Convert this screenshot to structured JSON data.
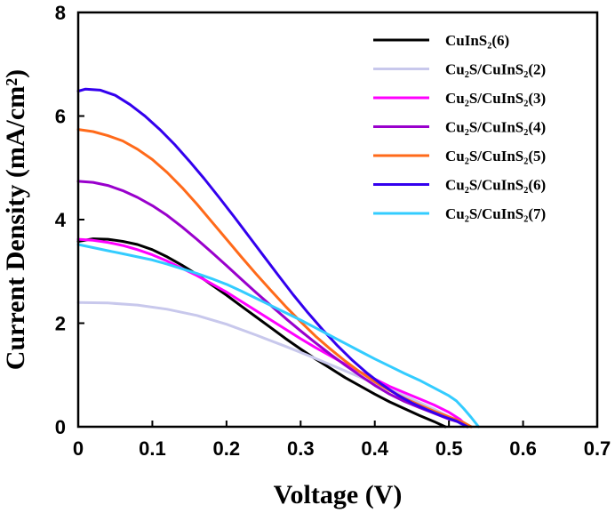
{
  "chart_data": {
    "type": "line",
    "title": "",
    "xlabel": "Voltage (V)",
    "ylabel": "Current Density (mA/cm²)",
    "xlim": [
      0,
      0.7
    ],
    "ylim": [
      0,
      8
    ],
    "xticks": [
      "0",
      "0.1",
      "0.2",
      "0.3",
      "0.4",
      "0.5",
      "0.6",
      "0.7"
    ],
    "yticks": [
      "0",
      "2",
      "4",
      "6",
      "8"
    ],
    "grid": false,
    "legend_position": "top-right",
    "series": [
      {
        "name": "CuInS₂(6)",
        "color": "#000000",
        "points": [
          [
            0,
            3.58
          ],
          [
            0.02,
            3.63
          ],
          [
            0.04,
            3.62
          ],
          [
            0.06,
            3.58
          ],
          [
            0.08,
            3.52
          ],
          [
            0.1,
            3.42
          ],
          [
            0.12,
            3.28
          ],
          [
            0.14,
            3.12
          ],
          [
            0.16,
            2.94
          ],
          [
            0.18,
            2.74
          ],
          [
            0.2,
            2.54
          ],
          [
            0.22,
            2.33
          ],
          [
            0.24,
            2.12
          ],
          [
            0.26,
            1.91
          ],
          [
            0.28,
            1.7
          ],
          [
            0.3,
            1.5
          ],
          [
            0.32,
            1.31
          ],
          [
            0.34,
            1.13
          ],
          [
            0.36,
            0.95
          ],
          [
            0.38,
            0.79
          ],
          [
            0.4,
            0.63
          ],
          [
            0.42,
            0.48
          ],
          [
            0.44,
            0.35
          ],
          [
            0.46,
            0.22
          ],
          [
            0.48,
            0.1
          ],
          [
            0.495,
            0.0
          ]
        ]
      },
      {
        "name": "Cu₂S/CuInS₂(2)",
        "color": "#c8c8ec",
        "points": [
          [
            0,
            2.4
          ],
          [
            0.04,
            2.39
          ],
          [
            0.08,
            2.35
          ],
          [
            0.12,
            2.27
          ],
          [
            0.16,
            2.15
          ],
          [
            0.2,
            1.98
          ],
          [
            0.24,
            1.77
          ],
          [
            0.28,
            1.55
          ],
          [
            0.32,
            1.32
          ],
          [
            0.36,
            1.08
          ],
          [
            0.4,
            0.84
          ],
          [
            0.44,
            0.6
          ],
          [
            0.48,
            0.34
          ],
          [
            0.51,
            0.12
          ],
          [
            0.52,
            0.0
          ]
        ]
      },
      {
        "name": "Cu₂S/CuInS₂(3)",
        "color": "#ff00ff",
        "points": [
          [
            0,
            3.62
          ],
          [
            0.02,
            3.6
          ],
          [
            0.04,
            3.56
          ],
          [
            0.06,
            3.5
          ],
          [
            0.08,
            3.42
          ],
          [
            0.1,
            3.32
          ],
          [
            0.12,
            3.2
          ],
          [
            0.14,
            3.06
          ],
          [
            0.16,
            2.92
          ],
          [
            0.18,
            2.76
          ],
          [
            0.2,
            2.6
          ],
          [
            0.22,
            2.42
          ],
          [
            0.24,
            2.24
          ],
          [
            0.26,
            2.06
          ],
          [
            0.28,
            1.88
          ],
          [
            0.3,
            1.7
          ],
          [
            0.32,
            1.53
          ],
          [
            0.34,
            1.37
          ],
          [
            0.36,
            1.21
          ],
          [
            0.38,
            1.06
          ],
          [
            0.4,
            0.92
          ],
          [
            0.42,
            0.78
          ],
          [
            0.44,
            0.66
          ],
          [
            0.46,
            0.54
          ],
          [
            0.48,
            0.42
          ],
          [
            0.5,
            0.28
          ],
          [
            0.515,
            0.14
          ],
          [
            0.525,
            0.0
          ]
        ]
      },
      {
        "name": "Cu₂S/CuInS₂(4)",
        "color": "#9900cc",
        "points": [
          [
            0,
            4.74
          ],
          [
            0.02,
            4.72
          ],
          [
            0.04,
            4.66
          ],
          [
            0.06,
            4.56
          ],
          [
            0.08,
            4.43
          ],
          [
            0.1,
            4.27
          ],
          [
            0.12,
            4.08
          ],
          [
            0.14,
            3.86
          ],
          [
            0.16,
            3.62
          ],
          [
            0.18,
            3.37
          ],
          [
            0.2,
            3.11
          ],
          [
            0.22,
            2.85
          ],
          [
            0.24,
            2.59
          ],
          [
            0.26,
            2.34
          ],
          [
            0.28,
            2.09
          ],
          [
            0.3,
            1.85
          ],
          [
            0.32,
            1.62
          ],
          [
            0.34,
            1.4
          ],
          [
            0.36,
            1.19
          ],
          [
            0.38,
            0.99
          ],
          [
            0.4,
            0.8
          ],
          [
            0.42,
            0.63
          ],
          [
            0.44,
            0.49
          ],
          [
            0.46,
            0.37
          ],
          [
            0.48,
            0.26
          ],
          [
            0.5,
            0.15
          ],
          [
            0.52,
            0.06
          ],
          [
            0.53,
            0.0
          ]
        ]
      },
      {
        "name": "Cu₂S/CuInS₂(5)",
        "color": "#ff6a1a",
        "points": [
          [
            0,
            5.74
          ],
          [
            0.02,
            5.7
          ],
          [
            0.04,
            5.62
          ],
          [
            0.06,
            5.52
          ],
          [
            0.08,
            5.36
          ],
          [
            0.1,
            5.16
          ],
          [
            0.12,
            4.91
          ],
          [
            0.14,
            4.62
          ],
          [
            0.16,
            4.3
          ],
          [
            0.18,
            3.96
          ],
          [
            0.2,
            3.62
          ],
          [
            0.22,
            3.28
          ],
          [
            0.24,
            2.95
          ],
          [
            0.26,
            2.63
          ],
          [
            0.28,
            2.32
          ],
          [
            0.3,
            2.03
          ],
          [
            0.32,
            1.75
          ],
          [
            0.34,
            1.5
          ],
          [
            0.36,
            1.27
          ],
          [
            0.38,
            1.06
          ],
          [
            0.4,
            0.87
          ],
          [
            0.42,
            0.7
          ],
          [
            0.44,
            0.55
          ],
          [
            0.46,
            0.42
          ],
          [
            0.48,
            0.3
          ],
          [
            0.5,
            0.19
          ],
          [
            0.52,
            0.08
          ],
          [
            0.53,
            0.0
          ]
        ]
      },
      {
        "name": "Cu₂S/CuInS₂(6)",
        "color": "#3300ee",
        "points": [
          [
            0,
            6.48
          ],
          [
            0.01,
            6.52
          ],
          [
            0.03,
            6.5
          ],
          [
            0.05,
            6.4
          ],
          [
            0.07,
            6.22
          ],
          [
            0.09,
            6.0
          ],
          [
            0.11,
            5.74
          ],
          [
            0.13,
            5.45
          ],
          [
            0.15,
            5.13
          ],
          [
            0.17,
            4.79
          ],
          [
            0.19,
            4.43
          ],
          [
            0.21,
            4.06
          ],
          [
            0.23,
            3.68
          ],
          [
            0.25,
            3.3
          ],
          [
            0.27,
            2.92
          ],
          [
            0.29,
            2.55
          ],
          [
            0.31,
            2.2
          ],
          [
            0.33,
            1.87
          ],
          [
            0.35,
            1.56
          ],
          [
            0.37,
            1.28
          ],
          [
            0.39,
            1.03
          ],
          [
            0.41,
            0.81
          ],
          [
            0.43,
            0.62
          ],
          [
            0.45,
            0.46
          ],
          [
            0.47,
            0.33
          ],
          [
            0.49,
            0.21
          ],
          [
            0.51,
            0.11
          ],
          [
            0.525,
            0.0
          ]
        ]
      },
      {
        "name": "Cu₂S/CuInS₂(7)",
        "color": "#33ccff",
        "points": [
          [
            0,
            3.52
          ],
          [
            0.02,
            3.46
          ],
          [
            0.04,
            3.4
          ],
          [
            0.06,
            3.34
          ],
          [
            0.08,
            3.28
          ],
          [
            0.1,
            3.22
          ],
          [
            0.12,
            3.14
          ],
          [
            0.14,
            3.05
          ],
          [
            0.16,
            2.96
          ],
          [
            0.18,
            2.86
          ],
          [
            0.2,
            2.75
          ],
          [
            0.22,
            2.62
          ],
          [
            0.24,
            2.48
          ],
          [
            0.26,
            2.34
          ],
          [
            0.28,
            2.2
          ],
          [
            0.3,
            2.06
          ],
          [
            0.32,
            1.91
          ],
          [
            0.34,
            1.76
          ],
          [
            0.36,
            1.61
          ],
          [
            0.38,
            1.46
          ],
          [
            0.4,
            1.31
          ],
          [
            0.42,
            1.17
          ],
          [
            0.44,
            1.03
          ],
          [
            0.46,
            0.9
          ],
          [
            0.48,
            0.75
          ],
          [
            0.5,
            0.6
          ],
          [
            0.51,
            0.5
          ],
          [
            0.52,
            0.35
          ],
          [
            0.53,
            0.18
          ],
          [
            0.54,
            0.0
          ]
        ]
      }
    ]
  }
}
